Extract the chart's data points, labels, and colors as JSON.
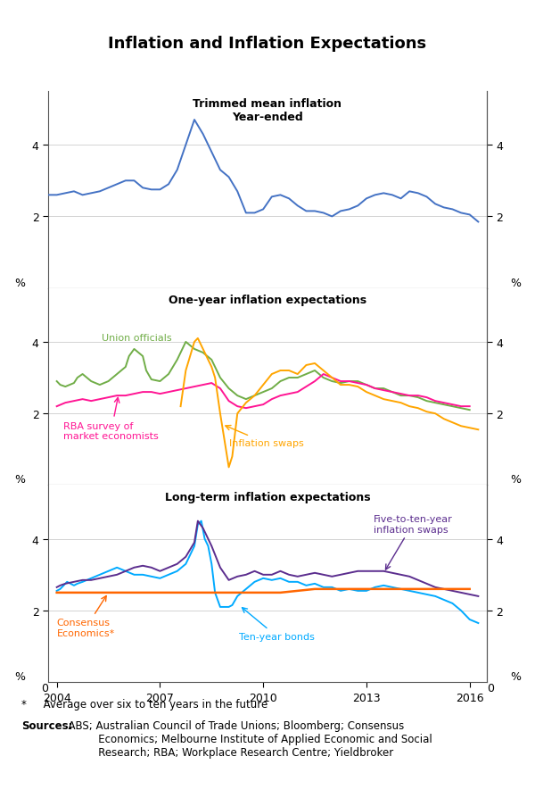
{
  "title": "Inflation and Inflation Expectations",
  "footnote": "*     Average over six to ten years in the future",
  "sources_label": "Sources:",
  "sources_text": "  ABS; Australian Council of Trade Unions; Bloomberg; Consensus\n           Economics; Melbourne Institute of Applied Economic and Social\n           Research; RBA; Workplace Research Centre; Yieldbroker",
  "panel1_title": "Trimmed mean inflation\nYear-ended",
  "panel2_title": "One-year inflation expectations",
  "panel3_title": "Long-term inflation expectations",
  "xlim_start": 2003.75,
  "xlim_end": 2016.5,
  "xticks": [
    2004,
    2007,
    2010,
    2013,
    2016
  ],
  "ylim": [
    0,
    5.5
  ],
  "yticks_shown": [
    2,
    4
  ],
  "trimmed_mean_color": "#4472C4",
  "union_color": "#70AD47",
  "rba_survey_color": "#FF1493",
  "inflation_swaps_1yr_color": "#FFA500",
  "ten_year_bonds_color": "#00AAFF",
  "consensus_color": "#FF6600",
  "five_ten_swaps_color": "#5B2D8E",
  "trimmed_mean_x": [
    2003.75,
    2004.0,
    2004.25,
    2004.5,
    2004.75,
    2005.0,
    2005.25,
    2005.5,
    2005.75,
    2006.0,
    2006.25,
    2006.5,
    2006.75,
    2007.0,
    2007.25,
    2007.5,
    2007.75,
    2008.0,
    2008.25,
    2008.5,
    2008.75,
    2009.0,
    2009.25,
    2009.5,
    2009.75,
    2010.0,
    2010.25,
    2010.5,
    2010.75,
    2011.0,
    2011.25,
    2011.5,
    2011.75,
    2012.0,
    2012.25,
    2012.5,
    2012.75,
    2013.0,
    2013.25,
    2013.5,
    2013.75,
    2014.0,
    2014.25,
    2014.5,
    2014.75,
    2015.0,
    2015.25,
    2015.5,
    2015.75,
    2016.0,
    2016.25
  ],
  "trimmed_mean_y": [
    2.6,
    2.6,
    2.65,
    2.7,
    2.6,
    2.65,
    2.7,
    2.8,
    2.9,
    3.0,
    3.0,
    2.8,
    2.75,
    2.75,
    2.9,
    3.3,
    4.0,
    4.7,
    4.3,
    3.8,
    3.3,
    3.1,
    2.7,
    2.1,
    2.1,
    2.2,
    2.55,
    2.6,
    2.5,
    2.3,
    2.15,
    2.15,
    2.1,
    2.0,
    2.15,
    2.2,
    2.3,
    2.5,
    2.6,
    2.65,
    2.6,
    2.5,
    2.7,
    2.65,
    2.55,
    2.35,
    2.25,
    2.2,
    2.1,
    2.05,
    1.85
  ],
  "union_x": [
    2004.0,
    2004.1,
    2004.25,
    2004.5,
    2004.6,
    2004.75,
    2005.0,
    2005.25,
    2005.5,
    2005.75,
    2006.0,
    2006.1,
    2006.25,
    2006.5,
    2006.6,
    2006.75,
    2007.0,
    2007.25,
    2007.5,
    2007.75,
    2008.0,
    2008.25,
    2008.5,
    2008.75,
    2009.0,
    2009.25,
    2009.5,
    2009.75,
    2010.0,
    2010.25,
    2010.5,
    2010.75,
    2011.0,
    2011.25,
    2011.5,
    2011.75,
    2012.0,
    2012.25,
    2012.5,
    2012.75,
    2013.0,
    2013.25,
    2013.5,
    2013.75,
    2014.0,
    2014.25,
    2014.5,
    2014.75,
    2015.0,
    2015.25,
    2015.5,
    2015.75,
    2016.0
  ],
  "union_y": [
    2.9,
    2.8,
    2.75,
    2.85,
    3.0,
    3.1,
    2.9,
    2.8,
    2.9,
    3.1,
    3.3,
    3.6,
    3.8,
    3.6,
    3.2,
    2.95,
    2.9,
    3.1,
    3.5,
    4.0,
    3.8,
    3.7,
    3.5,
    3.0,
    2.7,
    2.5,
    2.4,
    2.5,
    2.6,
    2.7,
    2.9,
    3.0,
    3.0,
    3.1,
    3.2,
    3.0,
    2.9,
    2.85,
    2.9,
    2.9,
    2.8,
    2.7,
    2.7,
    2.6,
    2.5,
    2.5,
    2.45,
    2.35,
    2.3,
    2.25,
    2.2,
    2.15,
    2.1
  ],
  "rba_survey_x": [
    2004.0,
    2004.25,
    2004.5,
    2004.75,
    2005.0,
    2005.25,
    2005.5,
    2005.75,
    2006.0,
    2006.25,
    2006.5,
    2006.75,
    2007.0,
    2007.25,
    2007.5,
    2007.75,
    2008.0,
    2008.25,
    2008.5,
    2008.75,
    2009.0,
    2009.25,
    2009.5,
    2009.75,
    2010.0,
    2010.25,
    2010.5,
    2010.75,
    2011.0,
    2011.25,
    2011.5,
    2011.75,
    2012.0,
    2012.25,
    2012.5,
    2012.75,
    2013.0,
    2013.25,
    2013.5,
    2013.75,
    2014.0,
    2014.25,
    2014.5,
    2014.75,
    2015.0,
    2015.25,
    2015.5,
    2015.75,
    2016.0
  ],
  "rba_survey_y": [
    2.2,
    2.3,
    2.35,
    2.4,
    2.35,
    2.4,
    2.45,
    2.5,
    2.5,
    2.55,
    2.6,
    2.6,
    2.55,
    2.6,
    2.65,
    2.7,
    2.75,
    2.8,
    2.85,
    2.7,
    2.35,
    2.2,
    2.15,
    2.2,
    2.25,
    2.4,
    2.5,
    2.55,
    2.6,
    2.75,
    2.9,
    3.1,
    3.0,
    2.9,
    2.9,
    2.85,
    2.8,
    2.7,
    2.65,
    2.6,
    2.55,
    2.5,
    2.5,
    2.45,
    2.35,
    2.3,
    2.25,
    2.2,
    2.2
  ],
  "infl_swaps_1yr_x": [
    2007.6,
    2007.75,
    2008.0,
    2008.1,
    2008.25,
    2008.4,
    2008.5,
    2008.6,
    2008.75,
    2009.0,
    2009.1,
    2009.25,
    2009.5,
    2009.75,
    2010.0,
    2010.25,
    2010.5,
    2010.75,
    2011.0,
    2011.25,
    2011.5,
    2011.75,
    2012.0,
    2012.25,
    2012.5,
    2012.75,
    2013.0,
    2013.25,
    2013.5,
    2013.75,
    2014.0,
    2014.25,
    2014.5,
    2014.75,
    2015.0,
    2015.25,
    2015.5,
    2015.75,
    2016.0,
    2016.25
  ],
  "infl_swaps_1yr_y": [
    2.2,
    3.2,
    4.0,
    4.1,
    3.8,
    3.5,
    3.3,
    3.0,
    2.0,
    0.5,
    0.8,
    2.0,
    2.3,
    2.5,
    2.8,
    3.1,
    3.2,
    3.2,
    3.1,
    3.35,
    3.4,
    3.2,
    3.0,
    2.8,
    2.8,
    2.75,
    2.6,
    2.5,
    2.4,
    2.35,
    2.3,
    2.2,
    2.15,
    2.05,
    2.0,
    1.85,
    1.75,
    1.65,
    1.6,
    1.55
  ],
  "consensus_x": [
    2004.0,
    2004.5,
    2005.0,
    2005.5,
    2006.0,
    2006.5,
    2007.0,
    2007.5,
    2008.0,
    2008.5,
    2009.0,
    2009.5,
    2010.0,
    2010.5,
    2011.0,
    2011.5,
    2012.0,
    2012.5,
    2013.0,
    2013.5,
    2014.0,
    2014.5,
    2015.0,
    2015.5,
    2016.0
  ],
  "consensus_y": [
    2.5,
    2.5,
    2.5,
    2.5,
    2.5,
    2.5,
    2.5,
    2.5,
    2.5,
    2.5,
    2.5,
    2.5,
    2.5,
    2.5,
    2.55,
    2.6,
    2.6,
    2.6,
    2.6,
    2.6,
    2.6,
    2.6,
    2.6,
    2.6,
    2.6
  ],
  "ten_year_x": [
    2004.0,
    2004.1,
    2004.2,
    2004.3,
    2004.4,
    2004.5,
    2004.6,
    2004.75,
    2005.0,
    2005.25,
    2005.5,
    2005.75,
    2006.0,
    2006.25,
    2006.5,
    2006.75,
    2007.0,
    2007.25,
    2007.5,
    2007.75,
    2008.0,
    2008.1,
    2008.2,
    2008.3,
    2008.4,
    2008.5,
    2008.6,
    2008.75,
    2009.0,
    2009.1,
    2009.25,
    2009.5,
    2009.75,
    2010.0,
    2010.25,
    2010.5,
    2010.75,
    2011.0,
    2011.25,
    2011.5,
    2011.75,
    2012.0,
    2012.25,
    2012.5,
    2012.75,
    2013.0,
    2013.25,
    2013.5,
    2013.75,
    2014.0,
    2014.25,
    2014.5,
    2014.75,
    2015.0,
    2015.25,
    2015.5,
    2015.75,
    2016.0,
    2016.25
  ],
  "ten_year_y": [
    2.55,
    2.6,
    2.7,
    2.8,
    2.75,
    2.7,
    2.75,
    2.8,
    2.9,
    3.0,
    3.1,
    3.2,
    3.1,
    3.0,
    3.0,
    2.95,
    2.9,
    3.0,
    3.1,
    3.3,
    3.8,
    4.4,
    4.5,
    4.0,
    3.8,
    3.3,
    2.5,
    2.1,
    2.1,
    2.15,
    2.4,
    2.6,
    2.8,
    2.9,
    2.85,
    2.9,
    2.8,
    2.8,
    2.7,
    2.75,
    2.65,
    2.65,
    2.55,
    2.6,
    2.55,
    2.55,
    2.65,
    2.7,
    2.65,
    2.6,
    2.55,
    2.5,
    2.45,
    2.4,
    2.3,
    2.2,
    2.0,
    1.75,
    1.65
  ],
  "five_ten_x": [
    2004.0,
    2004.1,
    2004.25,
    2004.5,
    2004.75,
    2005.0,
    2005.25,
    2005.5,
    2005.75,
    2006.0,
    2006.25,
    2006.5,
    2006.75,
    2007.0,
    2007.25,
    2007.5,
    2007.75,
    2008.0,
    2008.1,
    2008.25,
    2008.5,
    2008.75,
    2009.0,
    2009.25,
    2009.5,
    2009.75,
    2010.0,
    2010.25,
    2010.5,
    2010.75,
    2011.0,
    2011.25,
    2011.5,
    2011.75,
    2012.0,
    2012.25,
    2012.5,
    2012.75,
    2013.0,
    2013.25,
    2013.5,
    2013.75,
    2014.0,
    2014.25,
    2014.5,
    2014.75,
    2015.0,
    2015.25,
    2015.5,
    2015.75,
    2016.0,
    2016.25
  ],
  "five_ten_y": [
    2.65,
    2.7,
    2.75,
    2.8,
    2.85,
    2.85,
    2.9,
    2.95,
    3.0,
    3.1,
    3.2,
    3.25,
    3.2,
    3.1,
    3.2,
    3.3,
    3.5,
    3.9,
    4.5,
    4.3,
    3.8,
    3.2,
    2.85,
    2.95,
    3.0,
    3.1,
    3.0,
    3.0,
    3.1,
    3.0,
    2.95,
    3.0,
    3.05,
    3.0,
    2.95,
    3.0,
    3.05,
    3.1,
    3.1,
    3.1,
    3.1,
    3.05,
    3.0,
    2.95,
    2.85,
    2.75,
    2.65,
    2.6,
    2.55,
    2.5,
    2.45,
    2.4
  ]
}
